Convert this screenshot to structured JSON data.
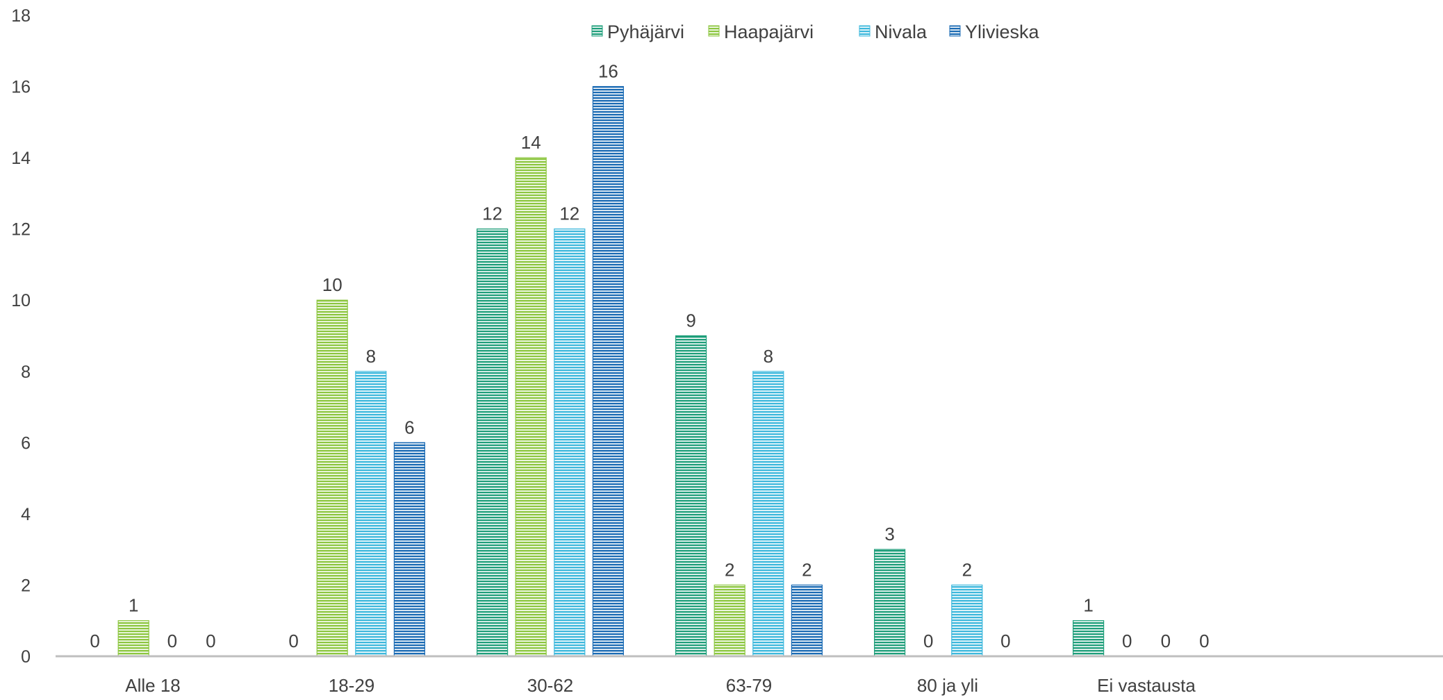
{
  "chart_data": {
    "type": "bar",
    "title": "",
    "xlabel": "",
    "ylabel": "",
    "ylim": [
      0,
      18
    ],
    "yticks": [
      0,
      2,
      4,
      6,
      8,
      10,
      12,
      14,
      16,
      18
    ],
    "grid": false,
    "legend_position": "top",
    "bar_pattern": "horizontal-stripes",
    "categories": [
      "Alle 18",
      "18-29",
      "30-62",
      "63-79",
      "80 ja yli",
      "Ei vastausta"
    ],
    "series": [
      {
        "name": "Pyhäjärvi",
        "color": "#1e9e7a",
        "values": [
          0,
          0,
          12,
          9,
          3,
          1
        ]
      },
      {
        "name": "Haapajärvi",
        "color": "#8cc63f",
        "values": [
          1,
          10,
          14,
          2,
          0,
          0
        ]
      },
      {
        "name": "Nivala",
        "color": "#3db8dc",
        "values": [
          0,
          8,
          12,
          8,
          2,
          0
        ]
      },
      {
        "name": "Ylivieska",
        "color": "#1b6bb4",
        "values": [
          0,
          6,
          16,
          2,
          0,
          0
        ]
      }
    ],
    "data_labels": [
      [
        "0",
        "1",
        "0",
        "0"
      ],
      [
        "0",
        "10",
        "8",
        "6"
      ],
      [
        "12",
        "14",
        "12",
        "16"
      ],
      [
        "9",
        "2",
        "8",
        "2"
      ],
      [
        "3",
        "0",
        "2",
        "0"
      ],
      [
        "1",
        "0",
        "0",
        "0"
      ]
    ],
    "axis_color": "#bfbfbf"
  }
}
